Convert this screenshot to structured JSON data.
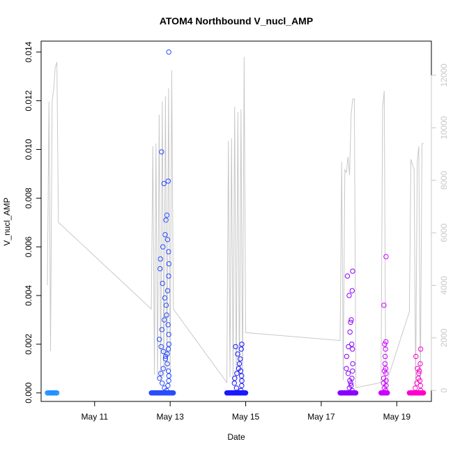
{
  "chart_data": {
    "type": "scatter",
    "title": "ATOM4 Northbound V_nucl_AMP",
    "xlabel": "Date",
    "ylabel": "V_nucl_AMP",
    "x_unit": "day",
    "xlim": [
      "2000-05-09T14:00",
      "2000-05-19T22:00"
    ],
    "ylim": [
      -0.00035,
      0.01445
    ],
    "y2lim": [
      -420,
      13300
    ],
    "x_ticks": [
      {
        "date": "2000-05-11",
        "label": "May 11"
      },
      {
        "date": "2000-05-13",
        "label": "May 13"
      },
      {
        "date": "2000-05-15",
        "label": "May 15"
      },
      {
        "date": "2000-05-17",
        "label": "May 17"
      },
      {
        "date": "2000-05-19",
        "label": "May 19"
      }
    ],
    "y_ticks": [
      {
        "value": 0,
        "label": "0.000"
      },
      {
        "value": 0.002,
        "label": "0.002"
      },
      {
        "value": 0.004,
        "label": "0.004"
      },
      {
        "value": 0.006,
        "label": "0.006"
      },
      {
        "value": 0.008,
        "label": "0.008"
      },
      {
        "value": 0.01,
        "label": "0.010"
      },
      {
        "value": 0.012,
        "label": "0.012"
      },
      {
        "value": 0.014,
        "label": "0.014"
      }
    ],
    "y2_ticks": [
      {
        "value": 0,
        "label": "0"
      },
      {
        "value": 2000,
        "label": "2000"
      },
      {
        "value": 4000,
        "label": "4000"
      },
      {
        "value": 6000,
        "label": "6000"
      },
      {
        "value": 8000,
        "label": "8000"
      },
      {
        "value": 10000,
        "label": "10000"
      },
      {
        "value": 12000,
        "label": "12000"
      }
    ],
    "colors": {
      "line": "#c8c8c8",
      "right_axis": "#c8c8c8",
      "point_gradient": [
        "#1e90ff",
        "#0000ff",
        "#8a00ff",
        "#ff00cc"
      ]
    },
    "grid": false,
    "line_series": [
      [
        "2000-05-09T18:00",
        4000
      ],
      [
        "2000-05-09T19:00",
        11000
      ],
      [
        "2000-05-09T20:00",
        1500
      ],
      [
        "2000-05-09T21:00",
        11000
      ],
      [
        "2000-05-09T22:00",
        11500
      ],
      [
        "2000-05-09T23:00",
        12300
      ],
      [
        "2000-05-10T00:00",
        12500
      ],
      [
        "2000-05-10T01:00",
        6400
      ],
      [
        "2000-05-12T12:00",
        3100
      ],
      [
        "2000-05-12T13:00",
        9300
      ],
      [
        "2000-05-12T14:00",
        600
      ],
      [
        "2000-05-12T15:00",
        9400
      ],
      [
        "2000-05-12T16:00",
        400
      ],
      [
        "2000-05-12T17:00",
        10500
      ],
      [
        "2000-05-12T18:00",
        300
      ],
      [
        "2000-05-12T19:00",
        11000
      ],
      [
        "2000-05-12T20:00",
        500
      ],
      [
        "2000-05-12T21:00",
        11200
      ],
      [
        "2000-05-12T22:00",
        700
      ],
      [
        "2000-05-12T23:00",
        11500
      ],
      [
        "2000-05-13T00:00",
        400
      ],
      [
        "2000-05-13T01:00",
        12200
      ],
      [
        "2000-05-13T02:00",
        3100
      ],
      [
        "2000-05-14T12:00",
        300
      ],
      [
        "2000-05-14T13:00",
        9500
      ],
      [
        "2000-05-14T14:00",
        500
      ],
      [
        "2000-05-14T15:00",
        9600
      ],
      [
        "2000-05-14T16:00",
        300
      ],
      [
        "2000-05-14T17:00",
        10800
      ],
      [
        "2000-05-14T18:00",
        400
      ],
      [
        "2000-05-14T19:00",
        10600
      ],
      [
        "2000-05-14T20:00",
        300
      ],
      [
        "2000-05-14T21:00",
        10700
      ],
      [
        "2000-05-14T22:00",
        200
      ],
      [
        "2000-05-14T23:00",
        12700
      ],
      [
        "2000-05-15T00:00",
        2200
      ],
      [
        "2000-05-17T12:00",
        1900
      ],
      [
        "2000-05-17T13:00",
        8700
      ],
      [
        "2000-05-17T14:00",
        400
      ],
      [
        "2000-05-17T15:00",
        8400
      ],
      [
        "2000-05-17T16:00",
        8300
      ],
      [
        "2000-05-17T17:00",
        8900
      ],
      [
        "2000-05-17T18:00",
        8200
      ],
      [
        "2000-05-17T19:00",
        10500
      ],
      [
        "2000-05-17T20:00",
        11100
      ],
      [
        "2000-05-17T21:00",
        11100
      ],
      [
        "2000-05-17T22:00",
        100
      ],
      [
        "2000-05-18T14:00",
        300
      ],
      [
        "2000-05-18T15:00",
        10800
      ],
      [
        "2000-05-18T16:00",
        11400
      ],
      [
        "2000-05-18T17:00",
        100
      ],
      [
        "2000-05-18T18:00",
        400
      ],
      [
        "2000-05-19T08:00",
        3000
      ],
      [
        "2000-05-19T09:00",
        8800
      ],
      [
        "2000-05-19T10:00",
        8600
      ],
      [
        "2000-05-19T11:00",
        8400
      ],
      [
        "2000-05-19T12:00",
        100
      ],
      [
        "2000-05-19T13:00",
        8700
      ],
      [
        "2000-05-19T14:00",
        9300
      ],
      [
        "2000-05-19T15:00",
        200
      ],
      [
        "2000-05-19T16:00",
        9400
      ],
      [
        "2000-05-19T17:00",
        9400
      ]
    ],
    "point_groups": [
      {
        "start": "2000-05-09T18:00",
        "end": "2000-05-10T00:00",
        "count": 14,
        "values": [
          0
        ],
        "color": "#1e90ff"
      },
      {
        "start": "2000-05-12T12:00",
        "end": "2000-05-13T02:00",
        "count": 60,
        "values": [
          0.014,
          0.0099,
          0.0087,
          0.0086,
          0.0073,
          0.0071,
          0.0065,
          0.0063,
          0.006,
          0.0058,
          0.0055,
          0.0053,
          0.0051,
          0.0048,
          0.0045,
          0.0042,
          0.0039,
          0.0036,
          0.0032,
          0.003,
          0.0028,
          0.0026,
          0.0024,
          0.0022,
          0.002,
          0.0019,
          0.0018,
          0.0017,
          0.0016,
          0.0015,
          0.0014,
          0.0012,
          0.001,
          0.0009,
          0.0008,
          0.0007,
          0.0006,
          0.0005,
          0.0004,
          0.0003,
          0.0002,
          0.0001,
          0
        ],
        "color": "#2a4cff"
      },
      {
        "start": "2000-05-14T12:00",
        "end": "2000-05-15T00:00",
        "count": 55,
        "values": [
          0.002,
          0.0019,
          0.0018,
          0.0016,
          0.0014,
          0.0012,
          0.001,
          0.0009,
          0.0008,
          0.0007,
          0.0006,
          0.0005,
          0.0004,
          0.0003,
          0.0002,
          0.0001,
          0
        ],
        "color": "#1a1aff"
      },
      {
        "start": "2000-05-17T12:00",
        "end": "2000-05-17T22:00",
        "count": 45,
        "values": [
          0.005,
          0.0048,
          0.0042,
          0.004,
          0.003,
          0.0029,
          0.0025,
          0.002,
          0.0019,
          0.0018,
          0.0015,
          0.0012,
          0.001,
          0.0009,
          0.0008,
          0.0006,
          0.0005,
          0.0004,
          0.0003,
          0.0002,
          0.0001,
          0
        ],
        "color": "#8a00ff"
      },
      {
        "start": "2000-05-18T14:00",
        "end": "2000-05-18T18:00",
        "count": 28,
        "values": [
          0.0056,
          0.0036,
          0.0021,
          0.002,
          0.0018,
          0.0015,
          0.0012,
          0.001,
          0.0009,
          0.0008,
          0.0006,
          0.0005,
          0.0004,
          0.0003,
          0.0002,
          0.0001,
          0
        ],
        "color": "#cc00ff"
      },
      {
        "start": "2000-05-19T08:00",
        "end": "2000-05-19T17:00",
        "count": 40,
        "values": [
          0.0018,
          0.0015,
          0.0012,
          0.001,
          0.0009,
          0.0008,
          0.0006,
          0.0005,
          0.0004,
          0.0003,
          0.0002,
          0.0001,
          0
        ],
        "color": "#ff00cc"
      }
    ]
  }
}
